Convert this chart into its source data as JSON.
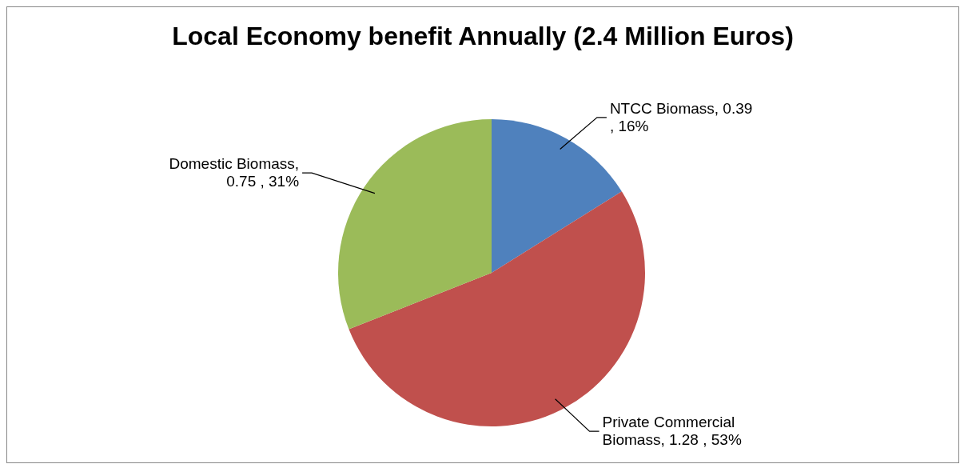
{
  "chart_data": {
    "type": "pie",
    "title": "Local Economy benefit Annually (2.4 Million Euros)",
    "categories": [
      "NTCC Biomass",
      "Private Commercial Biomass",
      "Domestic Biomass"
    ],
    "values": [
      0.39,
      1.28,
      0.75
    ],
    "value_labels": [
      ", 0.39 , 16%",
      ", 1.28 , 53%",
      ", 0.75 , 31%"
    ],
    "colors": [
      "#4f81bd",
      "#c0504d",
      "#9bbb59"
    ]
  }
}
